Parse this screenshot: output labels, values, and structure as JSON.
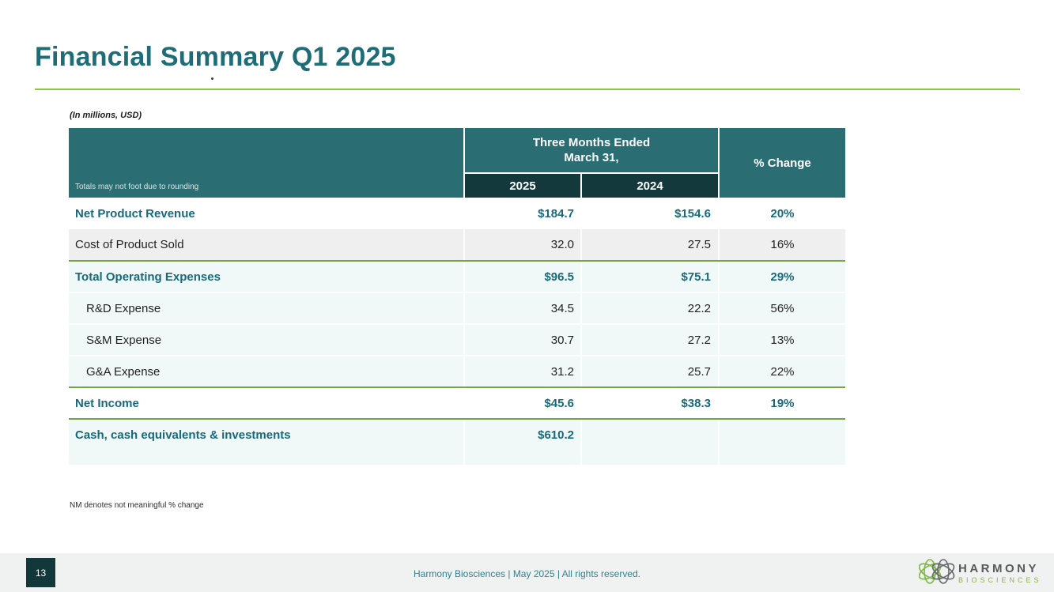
{
  "slide": {
    "title": "Financial Summary Q1 2025",
    "units_note": "(In millions, USD)",
    "footnote": "NM denotes not meaningful % change"
  },
  "table": {
    "header": {
      "rounding_note": "Totals may not foot due to rounding",
      "group_line1": "Three Months Ended",
      "group_line2": "March 31,",
      "col_2025": "2025",
      "col_2024": "2024",
      "pct_change": "% Change"
    },
    "rows": [
      {
        "label": "Net Product Revenue",
        "y2025": "$184.7",
        "y2024": "$154.6",
        "change": "20%",
        "emphasis": true,
        "indent": false,
        "shade": "white",
        "rule_below": false,
        "sep_below": false,
        "spacer": false
      },
      {
        "label": "Cost of Product Sold",
        "y2025": "32.0",
        "y2024": "27.5",
        "change": "16%",
        "emphasis": false,
        "indent": false,
        "shade": "gray",
        "rule_below": true,
        "sep_below": false,
        "spacer": false
      },
      {
        "label": "Total Operating Expenses",
        "y2025": "$96.5",
        "y2024": "$75.1",
        "change": "29%",
        "emphasis": true,
        "indent": false,
        "shade": "mint",
        "rule_below": false,
        "sep_below": true,
        "spacer": false
      },
      {
        "label": "R&D Expense",
        "y2025": "34.5",
        "y2024": "22.2",
        "change": "56%",
        "emphasis": false,
        "indent": true,
        "shade": "mint",
        "rule_below": false,
        "sep_below": true,
        "spacer": false
      },
      {
        "label": "S&M Expense",
        "y2025": "30.7",
        "y2024": "27.2",
        "change": "13%",
        "emphasis": false,
        "indent": true,
        "shade": "mint",
        "rule_below": false,
        "sep_below": true,
        "spacer": false
      },
      {
        "label": "G&A Expense",
        "y2025": "31.2",
        "y2024": "25.7",
        "change": "22%",
        "emphasis": false,
        "indent": true,
        "shade": "mint",
        "rule_below": true,
        "sep_below": false,
        "spacer": false
      },
      {
        "label": "Net Income",
        "y2025": "$45.6",
        "y2024": "$38.3",
        "change": "19%",
        "emphasis": true,
        "indent": false,
        "shade": "white",
        "rule_below": true,
        "sep_below": false,
        "spacer": false
      },
      {
        "label": "Cash, cash equivalents & investments",
        "y2025": "$610.2",
        "y2024": "",
        "change": "",
        "emphasis": true,
        "indent": false,
        "shade": "mint",
        "rule_below": false,
        "sep_below": false,
        "spacer": false
      },
      {
        "label": "",
        "y2025": "",
        "y2024": "",
        "change": "",
        "emphasis": false,
        "indent": false,
        "shade": "mint",
        "rule_below": false,
        "sep_below": false,
        "spacer": true
      }
    ]
  },
  "chart_data": {
    "type": "table",
    "title": "Financial Summary Q1 2025",
    "units": "In millions, USD",
    "columns": [
      "Metric",
      "Three Months Ended March 31, 2025",
      "Three Months Ended March 31, 2024",
      "% Change"
    ],
    "rows": [
      [
        "Net Product Revenue",
        184.7,
        154.6,
        "20%"
      ],
      [
        "Cost of Product Sold",
        32.0,
        27.5,
        "16%"
      ],
      [
        "Total Operating Expenses",
        96.5,
        75.1,
        "29%"
      ],
      [
        "R&D Expense",
        34.5,
        22.2,
        "56%"
      ],
      [
        "S&M Expense",
        30.7,
        27.2,
        "13%"
      ],
      [
        "G&A Expense",
        31.2,
        25.7,
        "22%"
      ],
      [
        "Net Income",
        45.6,
        38.3,
        "19%"
      ],
      [
        "Cash, cash equivalents & investments",
        610.2,
        null,
        null
      ]
    ]
  },
  "footer": {
    "page_number": "13",
    "caption": "Harmony Biosciences  | May 2025 | All rights reserved.",
    "logo_name": "HARMONY",
    "logo_sub": "BIOSCIENCES"
  },
  "colors": {
    "title_teal": "#1E6C76",
    "header_teal": "#2A6E73",
    "header_dark": "#14393D",
    "emphasis_teal": "#17697B",
    "green_rule": "#73A643",
    "title_underline": "#8DC63F",
    "gray_row": "#EFEFEF",
    "mint_row": "#F1F9F8",
    "footer_bar": "#F0F1F1",
    "logo_green": "#7DB543",
    "logo_gray": "#66686B"
  }
}
